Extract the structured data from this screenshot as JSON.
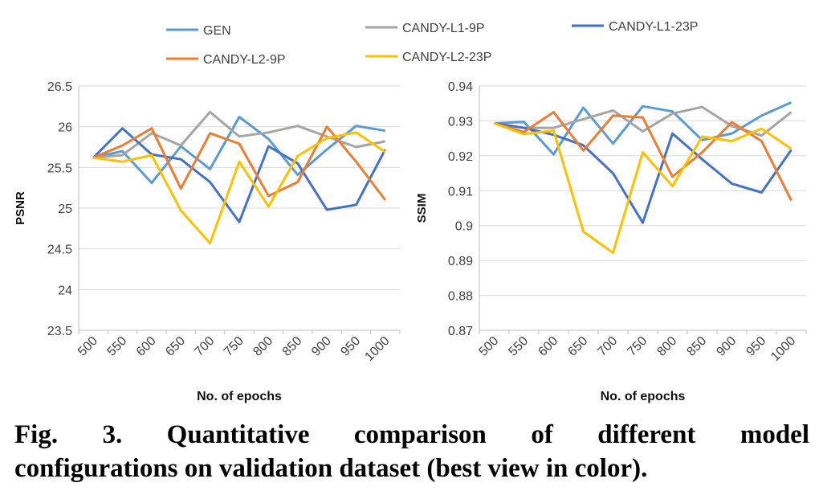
{
  "legend": [
    {
      "name": "GEN",
      "color": "#5b9bd5"
    },
    {
      "name": "CANDY-L1-9P",
      "color": "#a5a5a5"
    },
    {
      "name": "CANDY-L1-23P",
      "color": "#4472c4"
    },
    {
      "name": "CANDY-L2-9P",
      "color": "#ed7d31"
    },
    {
      "name": "CANDY-L2-23P",
      "color": "#ffc000"
    }
  ],
  "caption": {
    "line1": "Fig. 3. Quantitative comparison of different model",
    "line2": "configurations on validation dataset (best view in color)."
  },
  "chart_data": [
    {
      "type": "line",
      "xlabel": "No. of epochs",
      "ylabel": "PSNR",
      "categories": [
        "500",
        "550",
        "600",
        "650",
        "700",
        "750",
        "800",
        "850",
        "900",
        "950",
        "1000"
      ],
      "ylim": [
        23.5,
        26.5
      ],
      "yticks": [
        "23.5",
        "24",
        "24.5",
        "25",
        "25.5",
        "26",
        "26.5"
      ],
      "grid": true,
      "series": [
        {
          "name": "GEN",
          "color": "#5b9bd5",
          "values": [
            25.62,
            25.7,
            25.31,
            25.76,
            25.48,
            26.12,
            25.85,
            25.41,
            25.72,
            26.01,
            25.95
          ]
        },
        {
          "name": "CANDY-L1-9P",
          "color": "#a5a5a5",
          "values": [
            25.62,
            25.65,
            25.92,
            25.77,
            26.18,
            25.88,
            25.93,
            26.01,
            25.88,
            25.75,
            25.82
          ]
        },
        {
          "name": "CANDY-L1-23P",
          "color": "#4472c4",
          "values": [
            25.62,
            25.98,
            25.66,
            25.6,
            25.32,
            24.83,
            25.76,
            25.55,
            24.98,
            25.04,
            25.72
          ]
        },
        {
          "name": "CANDY-L2-9P",
          "color": "#ed7d31",
          "values": [
            25.62,
            25.77,
            25.98,
            25.24,
            25.92,
            25.79,
            25.15,
            25.32,
            26.0,
            25.57,
            25.1
          ]
        },
        {
          "name": "CANDY-L2-23P",
          "color": "#ffc000",
          "values": [
            25.62,
            25.57,
            25.65,
            24.97,
            24.57,
            25.57,
            25.02,
            25.64,
            25.86,
            25.93,
            25.69
          ]
        }
      ]
    },
    {
      "type": "line",
      "xlabel": "No. of epochs",
      "ylabel": "SSIM",
      "categories": [
        "500",
        "550",
        "600",
        "650",
        "700",
        "750",
        "800",
        "850",
        "900",
        "950",
        "1000"
      ],
      "ylim": [
        0.87,
        0.94
      ],
      "yticks": [
        "0.87",
        "0.88",
        "0.89",
        "0.9",
        "0.91",
        "0.92",
        "0.93",
        "0.94"
      ],
      "grid": true,
      "series": [
        {
          "name": "GEN",
          "color": "#5b9bd5",
          "values": [
            0.9293,
            0.9297,
            0.9204,
            0.9338,
            0.9235,
            0.9342,
            0.9327,
            0.9245,
            0.9264,
            0.9315,
            0.9353
          ]
        },
        {
          "name": "CANDY-L1-9P",
          "color": "#a5a5a5",
          "values": [
            0.9293,
            0.928,
            0.928,
            0.9305,
            0.933,
            0.927,
            0.9321,
            0.934,
            0.9285,
            0.9258,
            0.9325
          ]
        },
        {
          "name": "CANDY-L1-23P",
          "color": "#4472c4",
          "values": [
            0.9293,
            0.928,
            0.926,
            0.923,
            0.915,
            0.9008,
            0.9264,
            0.919,
            0.912,
            0.9095,
            0.9217
          ]
        },
        {
          "name": "CANDY-L2-9P",
          "color": "#ed7d31",
          "values": [
            0.9293,
            0.9268,
            0.9325,
            0.9215,
            0.9315,
            0.931,
            0.914,
            0.921,
            0.9296,
            0.9242,
            0.9072
          ]
        },
        {
          "name": "CANDY-L2-23P",
          "color": "#ffc000",
          "values": [
            0.9293,
            0.9262,
            0.9272,
            0.8983,
            0.8922,
            0.921,
            0.9113,
            0.9255,
            0.9242,
            0.9278,
            0.922
          ]
        }
      ]
    }
  ]
}
